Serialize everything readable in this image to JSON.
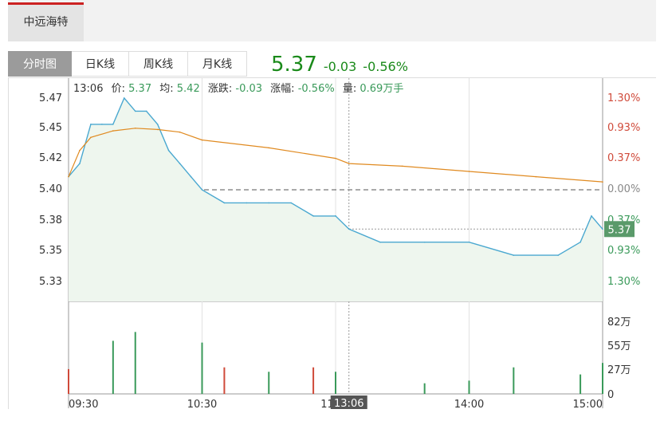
{
  "stock": {
    "name": "中远海特"
  },
  "tabs": [
    "分时图",
    "日K线",
    "周K线",
    "月K线"
  ],
  "quote": {
    "price": "5.37",
    "change": "-0.03",
    "change_pct": "-0.56%",
    "color": "#1a8a1a"
  },
  "info_bar": {
    "time": "13:06",
    "price_label": "价:",
    "price": "5.37",
    "avg_label": "均:",
    "avg": "5.42",
    "change_label": "涨跌:",
    "change": "-0.03",
    "pct_label": "涨幅:",
    "pct": "-0.56%",
    "volume_label": "量:",
    "volume": "0.69万手"
  },
  "colors": {
    "up": "#d04a3a",
    "down": "#3a9a5a",
    "price_line": "#4aa8d0",
    "avg_line": "#e08a20"
  },
  "chart_data": [
    {
      "type": "line",
      "price_ticks": [
        "5.47",
        "5.45",
        "5.42",
        "5.40",
        "5.38",
        "5.35",
        "5.33"
      ],
      "pct_ticks": [
        "1.30%",
        "0.93%",
        "0.37%",
        "0.00%",
        "0.37%",
        "0.93%",
        "1.30%"
      ],
      "x_ticks": [
        "09:30",
        "10:30",
        "11:30",
        "14:00",
        "15:00"
      ],
      "ylim": [
        5.33,
        5.47
      ],
      "prev_close": 5.4,
      "current_price": 5.37,
      "current_price_label": "5.37",
      "crosshair_time": "13:06",
      "series": [
        {
          "name": "价",
          "x": [
            "09:30",
            "09:35",
            "09:40",
            "09:45",
            "09:50",
            "09:55",
            "10:00",
            "10:05",
            "10:10",
            "10:15",
            "10:20",
            "10:25",
            "10:30",
            "10:40",
            "10:50",
            "11:00",
            "11:10",
            "11:20",
            "11:30",
            "13:00",
            "13:06",
            "13:20",
            "13:40",
            "14:00",
            "14:20",
            "14:40",
            "14:50",
            "14:55",
            "15:00"
          ],
          "values": [
            5.41,
            5.42,
            5.45,
            5.45,
            5.45,
            5.47,
            5.46,
            5.46,
            5.45,
            5.43,
            5.42,
            5.41,
            5.4,
            5.39,
            5.39,
            5.39,
            5.39,
            5.38,
            5.38,
            5.38,
            5.37,
            5.36,
            5.36,
            5.36,
            5.35,
            5.35,
            5.36,
            5.38,
            5.37
          ]
        },
        {
          "name": "均",
          "x": [
            "09:30",
            "09:35",
            "09:40",
            "09:50",
            "10:00",
            "10:10",
            "10:20",
            "10:30",
            "11:00",
            "11:30",
            "13:06",
            "13:30",
            "14:00",
            "14:30",
            "15:00"
          ],
          "values": [
            5.41,
            5.43,
            5.44,
            5.445,
            5.447,
            5.446,
            5.444,
            5.438,
            5.432,
            5.424,
            5.42,
            5.418,
            5.414,
            5.41,
            5.406
          ]
        }
      ]
    },
    {
      "type": "bar",
      "y_ticks": [
        "82万",
        "55万",
        "27万",
        "0"
      ],
      "ylim": [
        0,
        82
      ],
      "series": [
        {
          "name": "成交量",
          "x": [
            "09:30",
            "09:50",
            "10:00",
            "10:30",
            "10:40",
            "11:00",
            "11:20",
            "13:00",
            "13:40",
            "14:00",
            "14:20",
            "14:50",
            "15:00"
          ],
          "values": [
            28,
            60,
            70,
            58,
            30,
            25,
            30,
            25,
            12,
            15,
            30,
            22,
            35
          ],
          "direction": [
            "up",
            "down",
            "down",
            "down",
            "up",
            "down",
            "up",
            "down",
            "down",
            "down",
            "down",
            "down",
            "down"
          ]
        }
      ]
    }
  ]
}
